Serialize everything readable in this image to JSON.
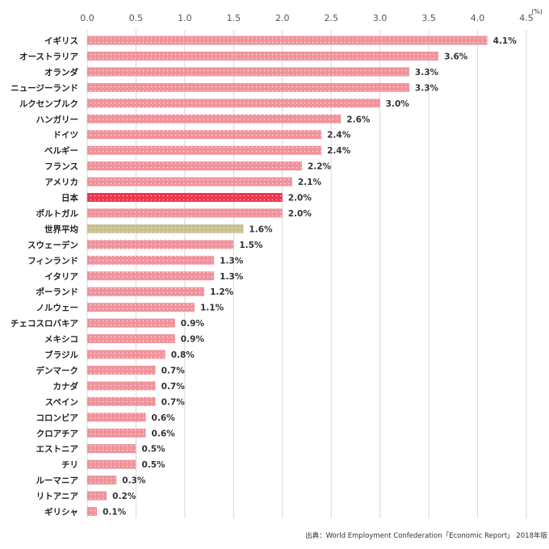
{
  "chart_data": {
    "type": "bar",
    "orientation": "horizontal",
    "unit": "(%)",
    "xlim": [
      0,
      4.5
    ],
    "x_ticks": [
      "0.0",
      "0.5",
      "1.0",
      "1.5",
      "2.0",
      "2.5",
      "3.0",
      "3.5",
      "4.0",
      "4.5"
    ],
    "grid": true,
    "categories": [
      "イギリス",
      "オーストラリア",
      "オランダ",
      "ニュージーランド",
      "ルクセンブルク",
      "ハンガリー",
      "ドイツ",
      "ベルギー",
      "フランス",
      "アメリカ",
      "日本",
      "ポルトガル",
      "世界平均",
      "スウェーデン",
      "フィンランド",
      "イタリア",
      "ポーランド",
      "ノルウェー",
      "チェコスロバキア",
      "メキシコ",
      "ブラジル",
      "デンマーク",
      "カナダ",
      "スペイン",
      "コロンビア",
      "クロアチア",
      "エストニア",
      "チリ",
      "ルーマニア",
      "リトアニア",
      "ギリシャ"
    ],
    "values": [
      4.1,
      3.6,
      3.3,
      3.3,
      3.0,
      2.6,
      2.4,
      2.4,
      2.2,
      2.1,
      2.0,
      2.0,
      1.6,
      1.5,
      1.3,
      1.3,
      1.2,
      1.1,
      0.9,
      0.9,
      0.8,
      0.7,
      0.7,
      0.7,
      0.6,
      0.6,
      0.5,
      0.5,
      0.3,
      0.2,
      0.1
    ],
    "data_labels": [
      "4.1%",
      "3.6%",
      "3.3%",
      "3.3%",
      "3.0%",
      "2.6%",
      "2.4%",
      "2.4%",
      "2.2%",
      "2.1%",
      "2.0%",
      "2.0%",
      "1.6%",
      "1.5%",
      "1.3%",
      "1.3%",
      "1.2%",
      "1.1%",
      "0.9%",
      "0.9%",
      "0.8%",
      "0.7%",
      "0.7%",
      "0.7%",
      "0.6%",
      "0.6%",
      "0.5%",
      "0.5%",
      "0.3%",
      "0.2%",
      "0.1%"
    ],
    "colors": {
      "default": "#f0939b",
      "highlight": "#f0374f",
      "average": "#c8c08e",
      "dots": "#ffffff"
    },
    "highlight_category": "日本",
    "average_category": "世界平均",
    "source": "出典：World Employment Confederation「Economic Report」 2018年版"
  }
}
